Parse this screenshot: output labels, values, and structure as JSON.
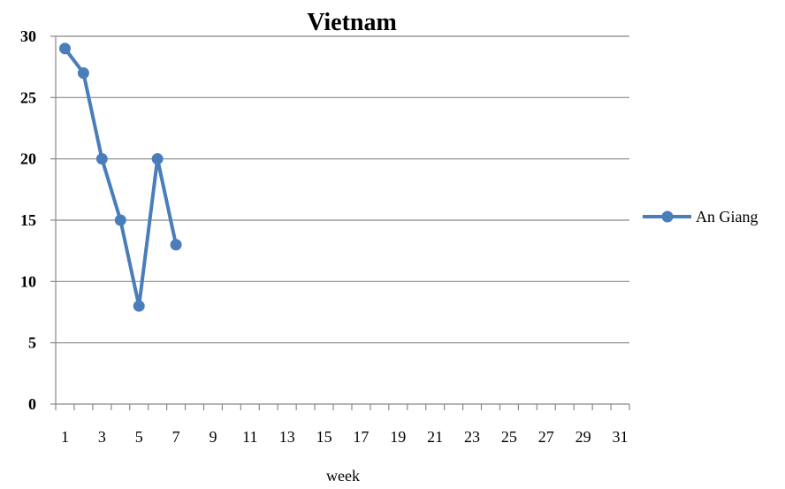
{
  "chart_data": {
    "type": "line",
    "title": "Vietnam",
    "xlabel": "week",
    "ylabel": "",
    "xlim": [
      0.5,
      31.5
    ],
    "ylim": [
      0,
      30
    ],
    "x_ticks": [
      "1",
      "3",
      "5",
      "7",
      "9",
      "11",
      "13",
      "15",
      "17",
      "19",
      "21",
      "23",
      "25",
      "27",
      "29",
      "31"
    ],
    "y_ticks": [
      "0",
      "5",
      "10",
      "15",
      "20",
      "25",
      "30"
    ],
    "grid": true,
    "legend_position": "right",
    "series": [
      {
        "name": "An Giang",
        "color": "#4a7ebb",
        "x": [
          1,
          2,
          3,
          4,
          5,
          6,
          7
        ],
        "y": [
          29,
          27,
          20,
          15,
          8,
          20,
          13
        ]
      }
    ]
  }
}
